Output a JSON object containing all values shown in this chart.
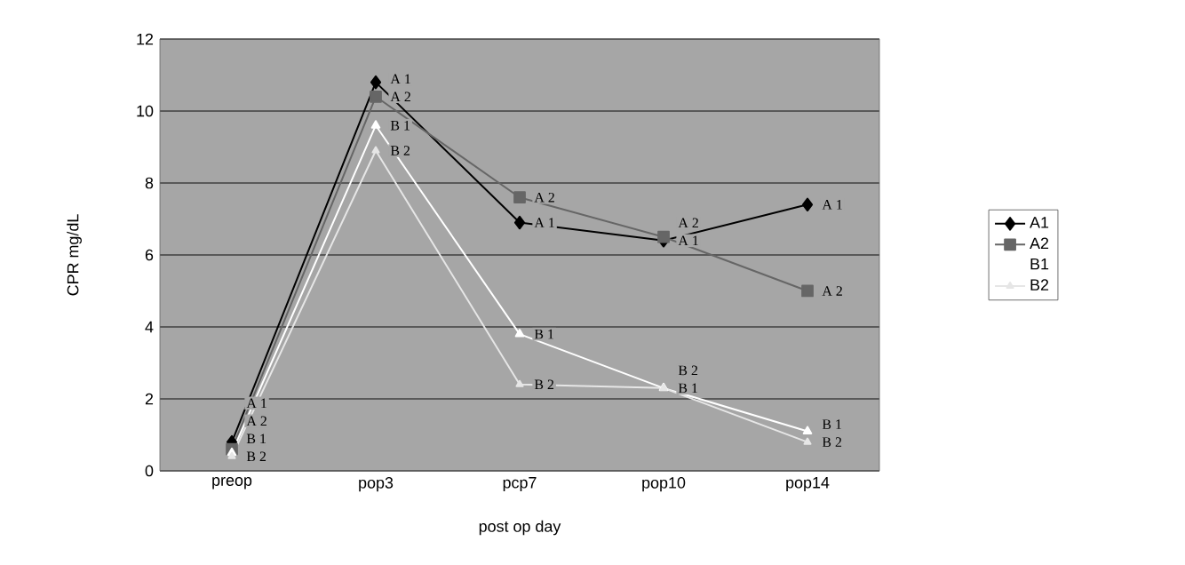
{
  "chart_data": {
    "type": "line",
    "xlabel": "post op day",
    "ylabel": "CPR mg/dL",
    "categories": [
      "preop",
      "pop3",
      "pcp7",
      "pop10",
      "pop14"
    ],
    "series": [
      {
        "name": "A1",
        "color": "#000000",
        "marker": "diamond",
        "values": [
          0.8,
          10.8,
          6.9,
          6.4,
          7.4
        ]
      },
      {
        "name": "A2",
        "color": "#666666",
        "marker": "square",
        "values": [
          0.6,
          10.4,
          7.6,
          6.5,
          5.0
        ]
      },
      {
        "name": "B1",
        "color": "#ffffff",
        "marker": "triangle",
        "values": [
          0.5,
          9.6,
          3.8,
          2.3,
          1.1
        ]
      },
      {
        "name": "B2",
        "color": "#e6e6e6",
        "marker": "triangle",
        "values": [
          0.4,
          8.9,
          2.4,
          2.3,
          0.8
        ]
      }
    ],
    "ylim": [
      0,
      12
    ],
    "yticks": [
      0,
      2,
      4,
      6,
      8,
      10,
      12
    ],
    "grid": "y",
    "legend": "right",
    "line_style": "solid",
    "annotations": [
      {
        "text": "A 1",
        "x": "preop",
        "y": 0.8
      },
      {
        "text": "A 2",
        "x": "preop",
        "y": 0.6
      },
      {
        "text": "B 1",
        "x": "preop",
        "y": 0.5
      },
      {
        "text": "B 2",
        "x": "preop",
        "y": 0.4
      },
      {
        "text": "A 1",
        "x": "pop3",
        "y": 10.8
      },
      {
        "text": "A 2",
        "x": "pop3",
        "y": 10.4
      },
      {
        "text": "B 1",
        "x": "pop3",
        "y": 9.6
      },
      {
        "text": "B 2",
        "x": "pop3",
        "y": 8.9
      },
      {
        "text": "A 2",
        "x": "pcp7",
        "y": 7.6
      },
      {
        "text": "A 1",
        "x": "pcp7",
        "y": 6.9
      },
      {
        "text": "B 1",
        "x": "pcp7",
        "y": 3.8
      },
      {
        "text": "B 2",
        "x": "pcp7",
        "y": 2.4
      },
      {
        "text": "A 2",
        "x": "pop10",
        "y": 6.5
      },
      {
        "text": "A 1",
        "x": "pop10",
        "y": 6.4
      },
      {
        "text": "B 1",
        "x": "pop10",
        "y": 2.3
      },
      {
        "text": "B 2",
        "x": "pop10",
        "y": 2.3
      },
      {
        "text": "A 1",
        "x": "pop14",
        "y": 7.4
      },
      {
        "text": "A 2",
        "x": "pop14",
        "y": 5.0
      },
      {
        "text": "B 1",
        "x": "pop14",
        "y": 1.1
      },
      {
        "text": "B 2",
        "x": "pop14",
        "y": 0.8
      }
    ]
  }
}
